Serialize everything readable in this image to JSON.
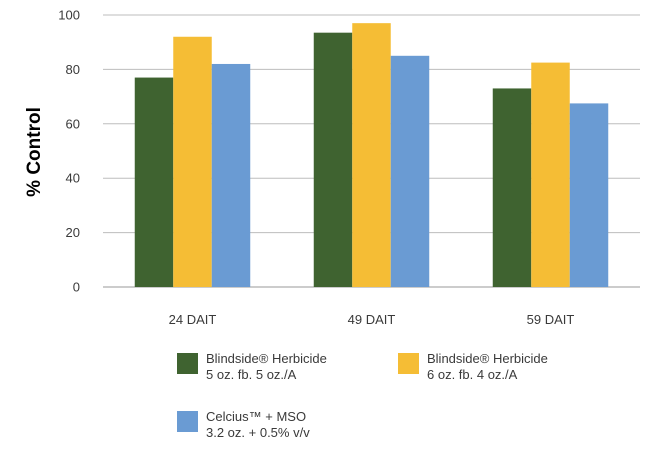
{
  "chart_data": {
    "type": "bar",
    "categories": [
      "24 DAIT",
      "49 DAIT",
      "59 DAIT"
    ],
    "series": [
      {
        "name": "Blindside® Herbicide 5 oz. fb. 5 oz./A",
        "line1": "Blindside® Herbicide",
        "line2": "5 oz. fb. 5 oz./A",
        "color": "#3f6330",
        "values": [
          77,
          93.5,
          73
        ]
      },
      {
        "name": "Blindside® Herbicide 6 oz. fb. 4 oz./A",
        "line1": "Blindside® Herbicide",
        "line2": "6 oz. fb. 4 oz./A",
        "color": "#f5bd35",
        "values": [
          92,
          97,
          82.5
        ]
      },
      {
        "name": "Celcius™ + MSO 3.2 oz. + 0.5% v/v",
        "line1": "Celcius™ + MSO",
        "line2": "3.2 oz. + 0.5% v/v",
        "color": "#6a9bd3",
        "values": [
          82,
          85,
          67.5
        ]
      }
    ],
    "title": "",
    "xlabel": "",
    "ylabel": "% Control",
    "ylim": [
      0,
      100
    ],
    "yticks": [
      0,
      20,
      40,
      60,
      80,
      100
    ],
    "grid": true,
    "legend_position": "bottom"
  }
}
